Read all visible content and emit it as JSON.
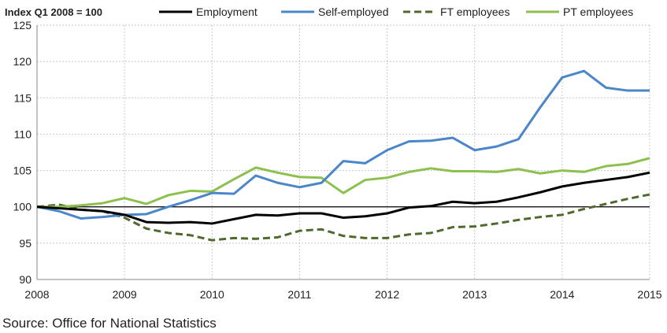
{
  "chart_data": {
    "type": "line",
    "title": "",
    "ylabel": "Index Q1 2008 = 100",
    "xlabel": "",
    "xlim": [
      2008,
      2015
    ],
    "ylim": [
      90,
      125
    ],
    "yticks": [
      90,
      95,
      100,
      105,
      110,
      115,
      120,
      125
    ],
    "xticks": [
      2008,
      2009,
      2010,
      2011,
      2012,
      2013,
      2014,
      2015
    ],
    "grid": true,
    "legend_position": "top",
    "x": [
      2008,
      2008.25,
      2008.5,
      2008.75,
      2009,
      2009.25,
      2009.5,
      2009.75,
      2010,
      2010.25,
      2010.5,
      2010.75,
      2011,
      2011.25,
      2011.5,
      2011.75,
      2012,
      2012.25,
      2012.5,
      2012.75,
      2013,
      2013.25,
      2013.5,
      2013.75,
      2014,
      2014.25,
      2014.5,
      2014.75,
      2015
    ],
    "series": [
      {
        "name": "Employment",
        "color": "#000000",
        "dash": false,
        "values": [
          100,
          99.8,
          99.6,
          99.4,
          98.9,
          97.9,
          97.8,
          97.9,
          97.7,
          98.3,
          98.9,
          98.8,
          99.1,
          99.1,
          98.5,
          98.7,
          99.1,
          99.9,
          100.1,
          100.7,
          100.5,
          100.7,
          101.3,
          102.0,
          102.8,
          103.3,
          103.7,
          104.1,
          104.7
        ]
      },
      {
        "name": "Self-employed",
        "color": "#4a86c8",
        "dash": false,
        "values": [
          100,
          99.4,
          98.4,
          98.6,
          98.9,
          99.0,
          100.0,
          100.9,
          101.9,
          101.8,
          104.3,
          103.3,
          102.7,
          103.3,
          106.3,
          106.0,
          107.8,
          109.0,
          109.1,
          109.5,
          107.8,
          108.3,
          109.3,
          113.7,
          117.8,
          118.7,
          116.4,
          116.0,
          116.0
        ]
      },
      {
        "name": "FT employees",
        "color": "#4f6a2c",
        "dash": true,
        "values": [
          100,
          100.3,
          99.6,
          99.4,
          98.5,
          97.0,
          96.4,
          96.1,
          95.4,
          95.7,
          95.6,
          95.8,
          96.7,
          96.9,
          96.0,
          95.7,
          95.7,
          96.2,
          96.4,
          97.2,
          97.3,
          97.7,
          98.2,
          98.6,
          98.9,
          99.7,
          100.4,
          101.1,
          101.7
        ]
      },
      {
        "name": "PT employees",
        "color": "#8dc04f",
        "dash": false,
        "values": [
          100,
          100.0,
          100.2,
          100.5,
          101.2,
          100.4,
          101.6,
          102.2,
          102.1,
          103.8,
          105.4,
          104.7,
          104.1,
          104.0,
          101.9,
          103.7,
          104.0,
          104.8,
          105.3,
          104.9,
          104.9,
          104.8,
          105.2,
          104.6,
          105.0,
          104.8,
          105.6,
          105.9,
          106.7
        ]
      }
    ],
    "reference_line": 100
  },
  "source": "Source: Office for National Statistics"
}
